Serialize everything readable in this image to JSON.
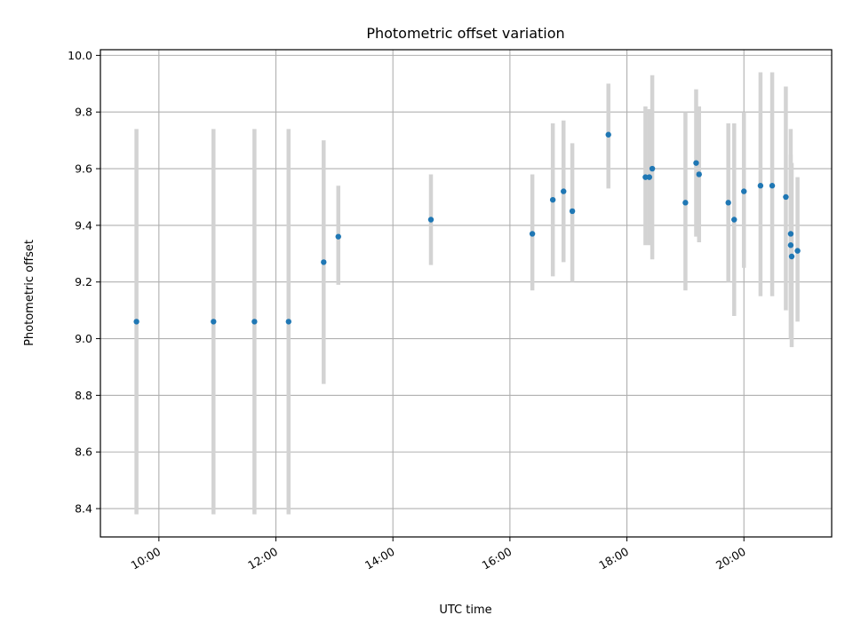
{
  "chart_data": {
    "type": "scatter",
    "title": "Photometric offset variation",
    "xlabel": "UTC time",
    "ylabel": "Photometric offset",
    "x_unit": "hours (UTC)",
    "xlim": [
      "09:00",
      "21:30"
    ],
    "ylim": [
      8.3,
      10.02
    ],
    "x_ticks": [
      "10:00",
      "12:00",
      "14:00",
      "16:00",
      "18:00",
      "20:00"
    ],
    "y_ticks": [
      "8.4",
      "8.6",
      "8.8",
      "9.0",
      "9.2",
      "9.4",
      "9.6",
      "9.8",
      "10.0"
    ],
    "grid": true,
    "error_bars": true,
    "colors": {
      "point": "#1f77b4",
      "errorbar": "#d3d3d3",
      "grid": "#b0b0b0"
    },
    "points": [
      {
        "x": "09:37",
        "y": 9.06,
        "ylo": 8.38,
        "yhi": 9.74
      },
      {
        "x": "10:56",
        "y": 9.06,
        "ylo": 8.38,
        "yhi": 9.74
      },
      {
        "x": "11:38",
        "y": 9.06,
        "ylo": 8.38,
        "yhi": 9.74
      },
      {
        "x": "12:13",
        "y": 9.06,
        "ylo": 8.38,
        "yhi": 9.74
      },
      {
        "x": "12:49",
        "y": 9.27,
        "ylo": 8.84,
        "yhi": 9.7
      },
      {
        "x": "13:04",
        "y": 9.36,
        "ylo": 9.19,
        "yhi": 9.54
      },
      {
        "x": "14:39",
        "y": 9.42,
        "ylo": 9.26,
        "yhi": 9.58
      },
      {
        "x": "16:23",
        "y": 9.37,
        "ylo": 9.17,
        "yhi": 9.58
      },
      {
        "x": "16:44",
        "y": 9.49,
        "ylo": 9.22,
        "yhi": 9.76
      },
      {
        "x": "16:55",
        "y": 9.52,
        "ylo": 9.27,
        "yhi": 9.77
      },
      {
        "x": "17:04",
        "y": 9.45,
        "ylo": 9.2,
        "yhi": 9.69
      },
      {
        "x": "17:41",
        "y": 9.72,
        "ylo": 9.53,
        "yhi": 9.9
      },
      {
        "x": "18:19",
        "y": 9.57,
        "ylo": 9.33,
        "yhi": 9.82
      },
      {
        "x": "18:23",
        "y": 9.57,
        "ylo": 9.33,
        "yhi": 9.81
      },
      {
        "x": "18:26",
        "y": 9.6,
        "ylo": 9.28,
        "yhi": 9.93
      },
      {
        "x": "19:00",
        "y": 9.48,
        "ylo": 9.17,
        "yhi": 9.8
      },
      {
        "x": "19:11",
        "y": 9.62,
        "ylo": 9.36,
        "yhi": 9.88
      },
      {
        "x": "19:14",
        "y": 9.58,
        "ylo": 9.34,
        "yhi": 9.82
      },
      {
        "x": "19:44",
        "y": 9.48,
        "ylo": 9.2,
        "yhi": 9.76
      },
      {
        "x": "19:50",
        "y": 9.42,
        "ylo": 9.08,
        "yhi": 9.76
      },
      {
        "x": "20:00",
        "y": 9.52,
        "ylo": 9.25,
        "yhi": 9.8
      },
      {
        "x": "20:17",
        "y": 9.54,
        "ylo": 9.15,
        "yhi": 9.94
      },
      {
        "x": "20:29",
        "y": 9.54,
        "ylo": 9.15,
        "yhi": 9.94
      },
      {
        "x": "20:43",
        "y": 9.5,
        "ylo": 9.1,
        "yhi": 9.89
      },
      {
        "x": "20:48",
        "y": 9.37,
        "ylo": 9.1,
        "yhi": 9.65
      },
      {
        "x": "20:48",
        "y": 9.33,
        "ylo": 9.0,
        "yhi": 9.74
      },
      {
        "x": "20:49",
        "y": 9.29,
        "ylo": 8.97,
        "yhi": 9.62
      },
      {
        "x": "20:55",
        "y": 9.31,
        "ylo": 9.06,
        "yhi": 9.57
      }
    ]
  }
}
